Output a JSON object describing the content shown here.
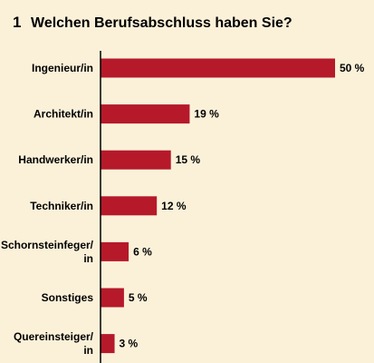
{
  "chart_data": {
    "type": "bar",
    "orientation": "horizontal",
    "number": "1",
    "title": "Welchen Berufsabschluss haben Sie?",
    "categories": [
      [
        "Ingenieur/in"
      ],
      [
        "Architekt/in"
      ],
      [
        "Handwerker/in"
      ],
      [
        "Techniker/in"
      ],
      [
        "Schornsteinfeger/",
        "in"
      ],
      [
        "Sonstiges"
      ],
      [
        "Quereinsteiger/",
        "in"
      ]
    ],
    "values": [
      50,
      19,
      15,
      12,
      6,
      5,
      3
    ],
    "value_labels": [
      "50 %",
      "19 %",
      "15 %",
      "12 %",
      "6 %",
      "5 %",
      "3 %"
    ],
    "xlim": [
      0,
      50
    ],
    "bar_color": "#b5192a",
    "axis_color": "#000000",
    "background": "#fbf1d9"
  }
}
